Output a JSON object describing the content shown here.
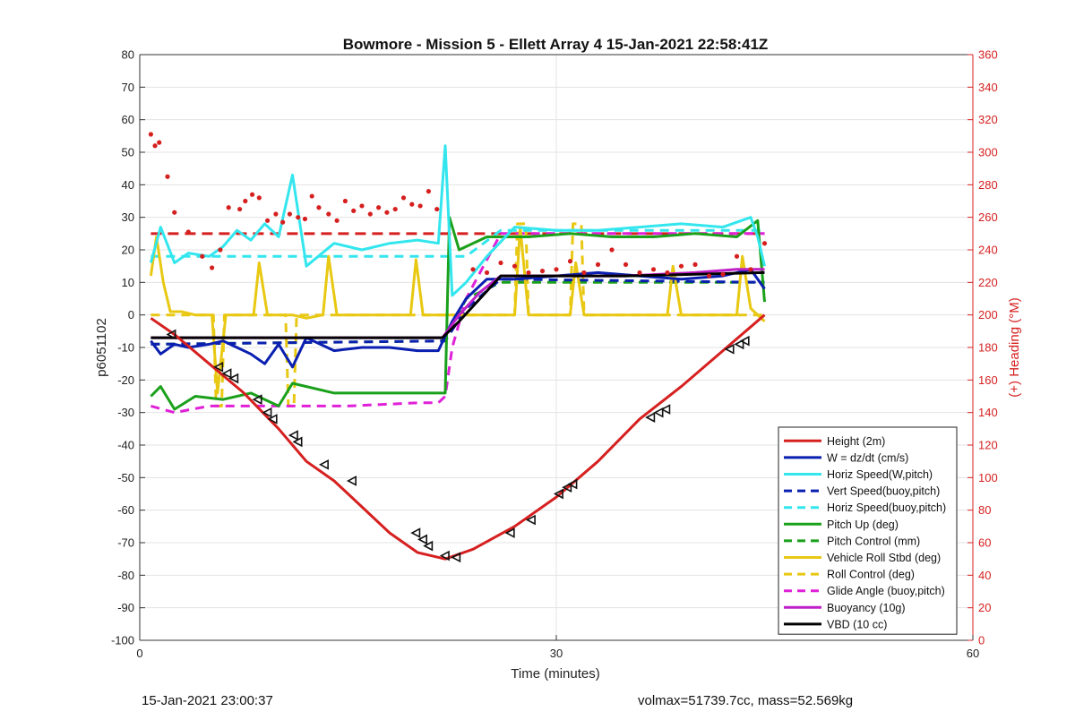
{
  "chart_data": {
    "type": "line",
    "title": "Bowmore - Mission 5 - Ellett Array 4 15-Jan-2021 22:58:41Z",
    "xlabel": "Time (minutes)",
    "ylabel": "p6051102",
    "y2label": "(+) Heading (°M)",
    "xlim": [
      0,
      60
    ],
    "ylim": [
      -100,
      80
    ],
    "y2lim": [
      0,
      360
    ],
    "xticks": [
      0,
      30,
      60
    ],
    "yticks": [
      -100,
      -90,
      -80,
      -70,
      -60,
      -50,
      -40,
      -30,
      -20,
      -10,
      0,
      10,
      20,
      30,
      40,
      50,
      60,
      70,
      80
    ],
    "y2ticks": [
      0,
      20,
      40,
      60,
      80,
      100,
      120,
      140,
      160,
      180,
      200,
      220,
      240,
      260,
      280,
      300,
      320,
      340,
      360
    ],
    "grid": true,
    "legend_position": "bottom-right",
    "colors": {
      "height": "#d62020",
      "w": "#0a1fb0",
      "horiz_speed": "#33e6ee",
      "pitch": "#1aa01a",
      "roll": "#e8c812",
      "glide": "#e020d8",
      "buoyancy": "#c020c8",
      "vbd": "#000000",
      "heading": "#d62020"
    },
    "series": [
      {
        "name": "Height (2m)",
        "key": "height",
        "style": "solid",
        "x": [
          0.8,
          2.5,
          5,
          7.5,
          10,
          12,
          14,
          16,
          18,
          20,
          22,
          24,
          27,
          30,
          33,
          36,
          39,
          42,
          45
        ],
        "values": [
          -1,
          -6,
          -15,
          -24,
          -35,
          -45,
          -51,
          -59,
          -67,
          -73,
          -75,
          -72,
          -65,
          -56,
          -45,
          -32,
          -22,
          -11,
          0
        ]
      },
      {
        "name": "W = dz/dt (cm/s)",
        "key": "w",
        "style": "solid",
        "x": [
          0.8,
          1.5,
          2.5,
          3.5,
          5,
          6,
          7,
          8,
          9,
          10,
          11,
          12,
          14,
          16,
          18,
          20,
          21.5,
          22.5,
          23.5,
          25,
          27,
          30,
          33,
          36,
          39,
          42,
          44,
          45
        ],
        "values": [
          -8,
          -12,
          -9,
          -10,
          -9,
          -8,
          -10,
          -12,
          -15,
          -9,
          -16,
          -7,
          -11,
          -10,
          -10,
          -11,
          -11,
          -2,
          5,
          11,
          11,
          12,
          13,
          12,
          11,
          12,
          14,
          8
        ]
      },
      {
        "name": "Horiz Speed(W,pitch)",
        "key": "horiz_speed",
        "style": "solid",
        "x": [
          0.8,
          1.5,
          2.5,
          3.5,
          5,
          6,
          7,
          8,
          9,
          10,
          11,
          12,
          14,
          16,
          18,
          20,
          21.5,
          22,
          22.5,
          23.5,
          25,
          27,
          30,
          33,
          36,
          39,
          42,
          44,
          44.5,
          45
        ],
        "values": [
          16,
          27,
          16,
          19,
          18,
          21,
          26,
          23,
          28,
          24,
          43,
          15,
          22,
          20,
          22,
          23,
          22,
          52,
          6,
          10,
          18,
          27,
          26,
          26,
          27,
          28,
          27,
          30,
          24,
          15
        ]
      },
      {
        "name": "Vert Speed(buoy,pitch)",
        "key": "vert_buoy",
        "style": "dashed",
        "x": [
          0.8,
          22,
          23.5,
          26,
          45
        ],
        "values": [
          -9,
          -8,
          2,
          11,
          10
        ]
      },
      {
        "name": "Horiz Speed(buoy,pitch)",
        "key": "horiz_buoy",
        "style": "dashed",
        "x": [
          0.8,
          22,
          23.5,
          26,
          45
        ],
        "values": [
          18,
          18,
          18,
          26,
          26
        ]
      },
      {
        "name": "Pitch Up (deg)",
        "key": "pitch_up",
        "style": "solid",
        "x": [
          0.8,
          1.5,
          2.5,
          4,
          6,
          8,
          10,
          11,
          14,
          18,
          21,
          22,
          22.3,
          23,
          25,
          28,
          31,
          34,
          37,
          40,
          43,
          44.5,
          45
        ],
        "values": [
          -25,
          -22,
          -29,
          -25,
          -26,
          -24,
          -28,
          -21,
          -24,
          -24,
          -24,
          -24,
          30,
          20,
          24,
          24,
          25,
          24,
          24,
          25,
          24,
          29,
          4
        ]
      },
      {
        "name": "Pitch Control (mm)",
        "key": "pitch_control",
        "style": "dashed",
        "x": [
          0.8,
          22,
          23.5,
          26,
          45
        ],
        "values": [
          -9,
          -8,
          5,
          10,
          10
        ]
      },
      {
        "name": "Vehicle Roll Stbd (deg)",
        "key": "roll",
        "style": "solid",
        "x": [
          0.8,
          1.2,
          1.7,
          2.2,
          3,
          4,
          5.2,
          5.6,
          6.2,
          7,
          8.2,
          8.6,
          9.2,
          10,
          11,
          12,
          13.2,
          13.6,
          14.2,
          15,
          17,
          19.5,
          19.9,
          20.4,
          21,
          22,
          23,
          25,
          27,
          27.4,
          28,
          30,
          31,
          31.4,
          32,
          34,
          38,
          38.4,
          39,
          42,
          43,
          43.4,
          44,
          45
        ],
        "values": [
          12,
          24,
          10,
          1,
          1,
          0,
          0,
          -24,
          0,
          0,
          0,
          16,
          0,
          0,
          0,
          -1,
          0,
          18,
          0,
          0,
          0,
          0,
          17,
          0,
          0,
          0,
          0,
          0,
          0,
          27,
          0,
          0,
          0,
          16,
          0,
          0,
          0,
          15,
          0,
          0,
          0,
          18,
          2,
          -2
        ]
      },
      {
        "name": "Roll Control (deg)",
        "key": "roll_control",
        "style": "dashed",
        "x": [
          0.8,
          5.3,
          5.5,
          5.9,
          6.1,
          10.5,
          10.7,
          11.1,
          11.3,
          22,
          27,
          27.2,
          27.8,
          28,
          31,
          31.2,
          31.8,
          32,
          45
        ],
        "values": [
          0,
          0,
          -28,
          -28,
          0,
          0,
          -28,
          -28,
          0,
          0,
          0,
          28,
          28,
          0,
          0,
          28,
          28,
          0,
          0
        ]
      },
      {
        "name": "Glide Angle (buoy,pitch)",
        "key": "glide",
        "style": "dashed",
        "x": [
          0.8,
          2.5,
          5,
          10,
          15,
          20,
          21.5,
          22,
          22.5,
          23.5,
          26,
          45
        ],
        "values": [
          -28,
          -30,
          -28,
          -28,
          -28,
          -27,
          -27,
          -25,
          -10,
          5,
          25,
          25
        ]
      },
      {
        "name": "Buoyancy (10g)",
        "key": "buoyancy",
        "style": "solid",
        "x": [
          0.8,
          21.8,
          23,
          24.5,
          26,
          35,
          40,
          43,
          45
        ],
        "values": [
          -7,
          -7,
          0,
          7,
          12,
          12,
          13,
          14,
          14
        ]
      },
      {
        "name": "VBD (10 cc)",
        "key": "vbd",
        "style": "solid",
        "x": [
          0.8,
          21.8,
          23,
          24.5,
          26,
          35,
          40,
          45
        ],
        "values": [
          -7,
          -7,
          -2,
          5,
          12,
          12,
          12.5,
          13
        ]
      }
    ],
    "heading_points": {
      "axis": "right",
      "x": [
        0.8,
        1.1,
        1.4,
        2.0,
        2.5,
        3.5,
        4.5,
        5.2,
        5.8,
        6.4,
        7.2,
        7.6,
        8.1,
        8.6,
        9.2,
        9.8,
        10.3,
        10.8,
        11.4,
        11.9,
        12.4,
        12.9,
        13.6,
        14.2,
        14.8,
        15.4,
        16.0,
        16.6,
        17.2,
        17.8,
        18.4,
        19.0,
        19.6,
        20.2,
        20.8,
        21.4,
        24.0,
        25.0,
        26.0,
        27.0,
        28.0,
        29.0,
        30.0,
        31.0,
        32.0,
        33.0,
        34.0,
        35.0,
        36.0,
        37.0,
        38.0,
        39.0,
        40.0,
        41.0,
        42.0,
        43.0,
        44.0,
        45.0
      ],
      "values": [
        311,
        304,
        306,
        285,
        263,
        251,
        236,
        229,
        240,
        266,
        265,
        270,
        274,
        272,
        258,
        262,
        257,
        262,
        260,
        259,
        273,
        266,
        262,
        258,
        270,
        264,
        267,
        262,
        266,
        263,
        265,
        272,
        268,
        267,
        276,
        265,
        228,
        226,
        232,
        230,
        226,
        227,
        228,
        233,
        226,
        231,
        240,
        231,
        226,
        228,
        226,
        230,
        231,
        224,
        225,
        236,
        228,
        244
      ]
    },
    "reference_lines": [
      {
        "key": "heading_target",
        "axis": "right",
        "style": "dashed",
        "value": 250
      }
    ],
    "markers": {
      "shape": "triangle",
      "x": [
        2.3,
        5.7,
        6.3,
        6.8,
        8.5,
        9.2,
        9.6,
        11.1,
        11.4,
        13.3,
        15.3,
        19.9,
        20.4,
        20.8,
        22.0,
        22.8,
        26.7,
        28.2,
        30.2,
        30.8,
        31.2,
        36.8,
        37.4,
        37.9,
        42.5,
        43.2,
        43.6
      ],
      "values": [
        -6,
        -16,
        -18,
        -19.5,
        -26,
        -30,
        -32,
        -37,
        -39,
        -46,
        -51,
        -67,
        -69,
        -71,
        -74,
        -74.5,
        -67,
        -63,
        -55,
        -53,
        -52,
        -31.5,
        -30,
        -29,
        -10.5,
        -9,
        -8
      ]
    }
  },
  "footer": {
    "left": "15-Jan-2021 23:00:37",
    "right": "volmax=51739.7cc, mass=52.569kg"
  }
}
